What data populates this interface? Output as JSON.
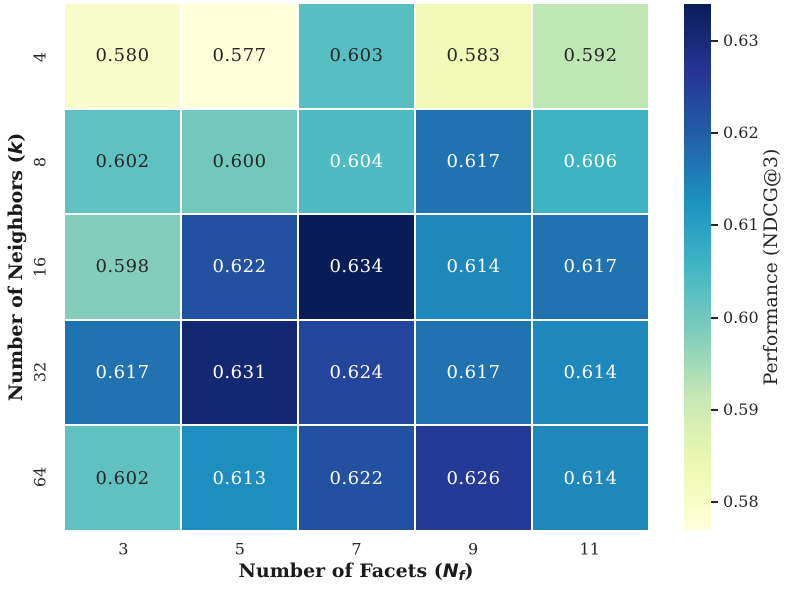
{
  "figure": {
    "background": "#ffffff",
    "xaxis": {
      "label_prefix": "Number of Facets (",
      "label_var": "N",
      "label_sub": "f",
      "label_suffix": ")",
      "ticks": [
        "3",
        "5",
        "7",
        "9",
        "11"
      ]
    },
    "yaxis": {
      "label_prefix": "Number of Neighbors (",
      "label_var": "k",
      "label_suffix": ")",
      "ticks": [
        "4",
        "8",
        "16",
        "32",
        "64"
      ]
    },
    "colorbar": {
      "label": "Performance (NDCG@3)"
    }
  },
  "chart_data": {
    "type": "heatmap",
    "xlabel": "Number of Facets (N_f)",
    "ylabel": "Number of Neighbors (k)",
    "colorbar_label": "Performance (NDCG@3)",
    "x_categories": [
      3,
      5,
      7,
      9,
      11
    ],
    "y_categories": [
      4,
      8,
      16,
      32,
      64
    ],
    "values": [
      [
        0.58,
        0.577,
        0.603,
        0.583,
        0.592
      ],
      [
        0.602,
        0.6,
        0.604,
        0.617,
        0.606
      ],
      [
        0.598,
        0.622,
        0.634,
        0.614,
        0.617
      ],
      [
        0.617,
        0.631,
        0.624,
        0.617,
        0.614
      ],
      [
        0.602,
        0.613,
        0.622,
        0.626,
        0.614
      ]
    ],
    "annotation_decimals": 3,
    "vmin": 0.577,
    "vmax": 0.634,
    "colormap": "YlGnBu",
    "colormap_anchors": [
      "#ffffd9",
      "#edf8b1",
      "#c7e9b4",
      "#7fcdbb",
      "#41b6c4",
      "#1d91c0",
      "#225ea8",
      "#253494",
      "#081d58"
    ],
    "colorbar_ticks": [
      0.58,
      0.59,
      0.6,
      0.61,
      0.62,
      0.63
    ],
    "colorbar_tick_decimals": 2,
    "annotation_light_threshold": 0.604,
    "annotation_color_dark": "#262626",
    "annotation_color_light": "#ffffff",
    "grid_line_color": "#ffffff",
    "legend_position": "right"
  }
}
